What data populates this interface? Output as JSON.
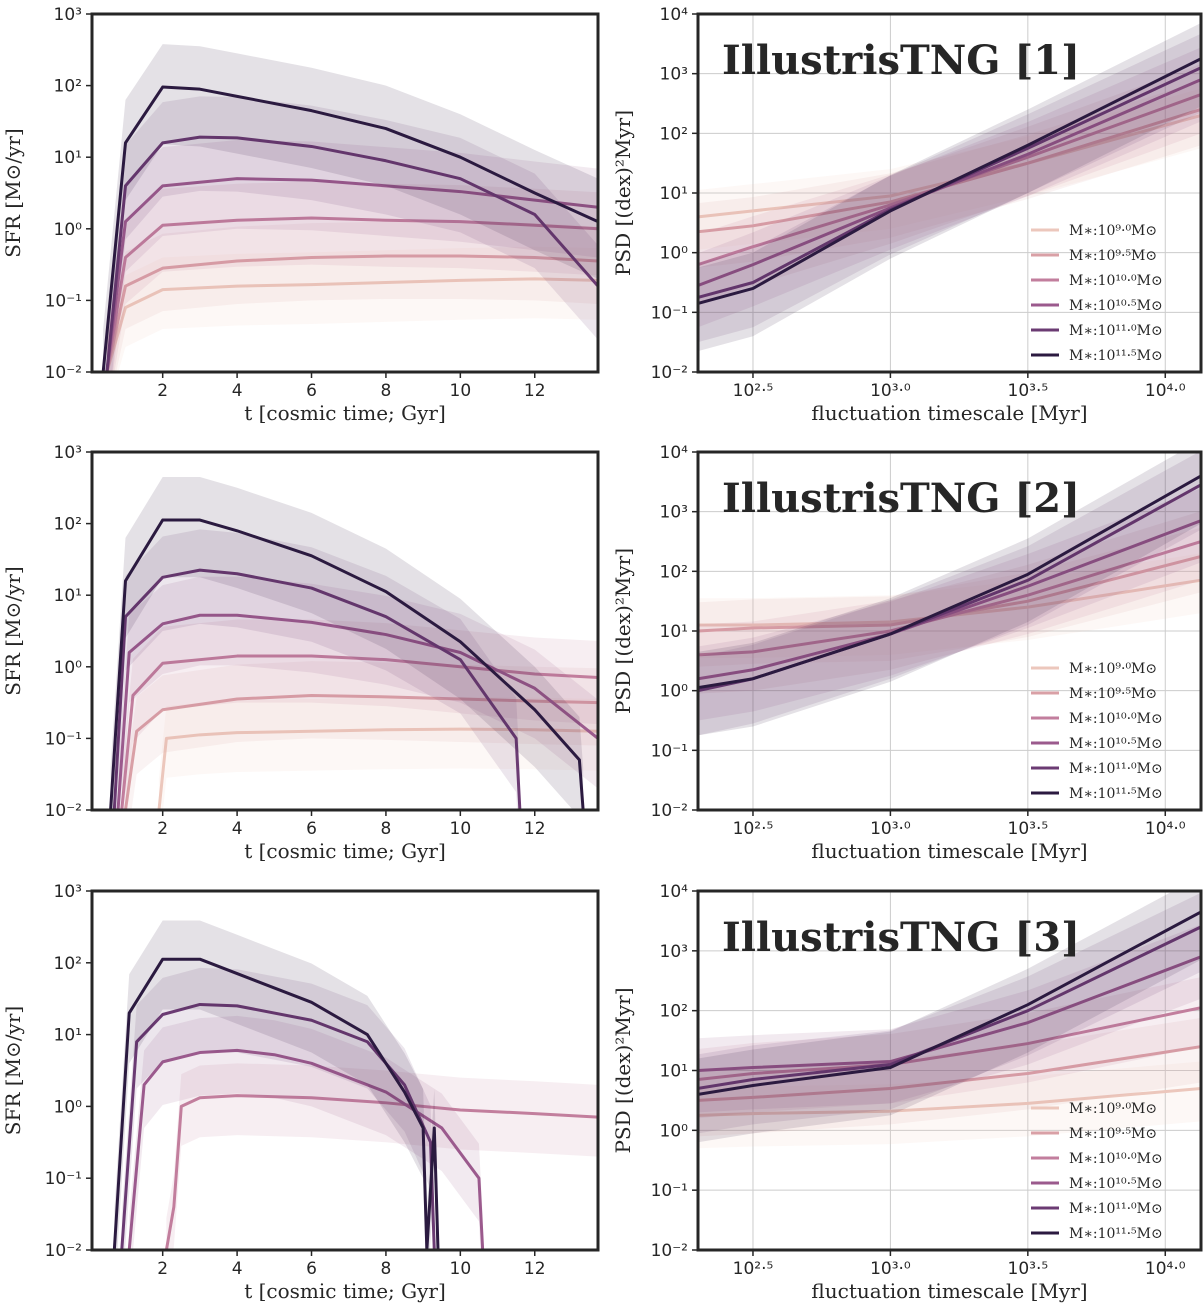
{
  "palette": [
    "#ecc7bc",
    "#d9a0a6",
    "#c27e9d",
    "#9b5a8d",
    "#6b3b73",
    "#2b1a40"
  ],
  "chart_data": [
    {
      "type": "line",
      "panel": "sfr",
      "xlabel": "t [cosmic time; Gyr]",
      "ylabel": "SFR [M⊙/yr]",
      "xlim": [
        0.1,
        13.7
      ],
      "ylim_log10": [
        -2,
        3
      ],
      "yscale": "log",
      "xticks": [
        2,
        4,
        6,
        8,
        10,
        12
      ],
      "yticks": [
        {
          "exp": -2,
          "label": "10⁻²"
        },
        {
          "exp": -1,
          "label": "10⁻¹"
        },
        {
          "exp": 0,
          "label": "10⁰"
        },
        {
          "exp": 1,
          "label": "10¹"
        },
        {
          "exp": 2,
          "label": "10²"
        },
        {
          "exp": 3,
          "label": "10³"
        }
      ],
      "series": [
        {
          "x": [
            0.5,
            1,
            2,
            4,
            6,
            8,
            10,
            12,
            13.7
          ],
          "log10_y": [
            -2,
            -1.1,
            -0.85,
            -0.8,
            -0.78,
            -0.75,
            -0.72,
            -0.7,
            -0.72
          ]
        },
        {
          "x": [
            0.5,
            1,
            2,
            4,
            6,
            8,
            10,
            12,
            13.7
          ],
          "log10_y": [
            -2,
            -0.8,
            -0.55,
            -0.45,
            -0.4,
            -0.38,
            -0.38,
            -0.4,
            -0.45
          ]
        },
        {
          "x": [
            0.5,
            1,
            2,
            4,
            6,
            8,
            10,
            12,
            13.7
          ],
          "log10_y": [
            -2,
            -0.4,
            0.05,
            0.12,
            0.15,
            0.12,
            0.1,
            0.05,
            0.0
          ]
        },
        {
          "x": [
            0.5,
            1,
            2,
            4,
            6,
            8,
            10,
            12,
            13.7
          ],
          "log10_y": [
            -2,
            0.1,
            0.6,
            0.7,
            0.68,
            0.6,
            0.52,
            0.4,
            0.3
          ]
        },
        {
          "x": [
            0.5,
            1,
            2,
            3,
            4,
            6,
            8,
            10,
            12,
            13.7
          ],
          "log10_y": [
            -2,
            0.6,
            1.2,
            1.28,
            1.27,
            1.15,
            0.95,
            0.7,
            0.2,
            -0.8
          ]
        },
        {
          "x": [
            0.4,
            1,
            2,
            3,
            4,
            6,
            8,
            10,
            12,
            13.7
          ],
          "log10_y": [
            -2,
            1.2,
            1.98,
            1.95,
            1.85,
            1.65,
            1.4,
            1.0,
            0.5,
            0.1
          ]
        }
      ]
    },
    {
      "type": "line",
      "panel": "psd",
      "title": "IllustrisTNG [1]",
      "xlabel": "fluctuation timescale [Myr]",
      "ylabel": "PSD [(dex)²Myr]",
      "xlim_log10": [
        2.3,
        4.13
      ],
      "ylim_log10": [
        -2,
        4
      ],
      "xscale": "log",
      "yscale": "log",
      "xticks": [
        {
          "exp": 2.5,
          "label": "10²·⁵"
        },
        {
          "exp": 3.0,
          "label": "10³·⁰"
        },
        {
          "exp": 3.5,
          "label": "10³·⁵"
        },
        {
          "exp": 4.0,
          "label": "10⁴·⁰"
        }
      ],
      "yticks": [
        {
          "exp": -2,
          "label": "10⁻²"
        },
        {
          "exp": -1,
          "label": "10⁻¹"
        },
        {
          "exp": 0,
          "label": "10⁰"
        },
        {
          "exp": 1,
          "label": "10¹"
        },
        {
          "exp": 2,
          "label": "10²"
        },
        {
          "exp": 3,
          "label": "10³"
        },
        {
          "exp": 4,
          "label": "10⁴"
        }
      ],
      "legend": [
        "M∗:10⁹·⁰M⊙",
        "M∗:10⁹·⁵M⊙",
        "M∗:10¹⁰·⁰M⊙",
        "M∗:10¹⁰·⁵M⊙",
        "M∗:10¹¹·⁰M⊙",
        "M∗:10¹¹·⁵M⊙"
      ],
      "legend_position": "lower-right",
      "series": [
        {
          "log10_x": [
            2.3,
            2.5,
            3.0,
            3.5,
            4.13
          ],
          "log10_y": [
            0.6,
            0.7,
            0.95,
            1.5,
            2.3
          ]
        },
        {
          "log10_x": [
            2.3,
            2.5,
            3.0,
            3.5,
            4.13
          ],
          "log10_y": [
            0.35,
            0.45,
            0.85,
            1.5,
            2.4
          ]
        },
        {
          "log10_x": [
            2.3,
            2.5,
            3.0,
            3.5,
            4.13
          ],
          "log10_y": [
            -0.2,
            0.1,
            0.8,
            1.6,
            2.65
          ]
        },
        {
          "log10_x": [
            2.3,
            2.5,
            3.0,
            3.5,
            4.13
          ],
          "log10_y": [
            -0.55,
            -0.2,
            0.75,
            1.65,
            2.9
          ]
        },
        {
          "log10_x": [
            2.3,
            2.5,
            3.0,
            3.5,
            4.13
          ],
          "log10_y": [
            -0.75,
            -0.5,
            0.72,
            1.75,
            3.1
          ]
        },
        {
          "log10_x": [
            2.3,
            2.5,
            3.0,
            3.5,
            4.13
          ],
          "log10_y": [
            -0.85,
            -0.6,
            0.7,
            1.8,
            3.25
          ]
        }
      ]
    },
    {
      "type": "line",
      "panel": "sfr",
      "xlabel": "t [cosmic time; Gyr]",
      "ylabel": "SFR [M⊙/yr]",
      "xlim": [
        0.1,
        13.7
      ],
      "ylim_log10": [
        -2,
        3
      ],
      "yscale": "log",
      "xticks": [
        2,
        4,
        6,
        8,
        10,
        12
      ],
      "yticks": [
        {
          "exp": -2,
          "label": "10⁻²"
        },
        {
          "exp": -1,
          "label": "10⁻¹"
        },
        {
          "exp": 0,
          "label": "10⁰"
        },
        {
          "exp": 1,
          "label": "10¹"
        },
        {
          "exp": 2,
          "label": "10²"
        },
        {
          "exp": 3,
          "label": "10³"
        }
      ],
      "series": [
        {
          "x": [
            1.9,
            2.1,
            3,
            4,
            6,
            8,
            10,
            12,
            13.7
          ],
          "log10_y": [
            -2,
            -1.0,
            -0.95,
            -0.92,
            -0.9,
            -0.88,
            -0.87,
            -0.88,
            -0.9
          ]
        },
        {
          "x": [
            1.0,
            1.3,
            2,
            4,
            6,
            8,
            10,
            12,
            13.7
          ],
          "log10_y": [
            -2,
            -0.9,
            -0.6,
            -0.45,
            -0.4,
            -0.42,
            -0.45,
            -0.48,
            -0.5
          ]
        },
        {
          "x": [
            0.9,
            1.2,
            2,
            4,
            6,
            8,
            10,
            12,
            13.7
          ],
          "log10_y": [
            -2,
            -0.4,
            0.05,
            0.15,
            0.15,
            0.1,
            0.0,
            -0.1,
            -0.15
          ]
        },
        {
          "x": [
            0.8,
            1.1,
            2,
            3,
            4,
            6,
            8,
            10,
            12,
            13.7
          ],
          "log10_y": [
            -2,
            0.2,
            0.6,
            0.72,
            0.72,
            0.62,
            0.45,
            0.2,
            -0.3,
            -1.0
          ]
        },
        {
          "x": [
            0.7,
            1.0,
            2,
            3,
            4,
            6,
            8,
            10,
            11.5,
            11.6
          ],
          "log10_y": [
            -2,
            0.7,
            1.25,
            1.35,
            1.3,
            1.1,
            0.7,
            0.1,
            -1.0,
            -2
          ]
        },
        {
          "x": [
            0.6,
            1.0,
            2,
            3,
            4,
            6,
            8,
            10,
            12,
            13.2,
            13.3
          ],
          "log10_y": [
            -2,
            1.2,
            2.05,
            2.05,
            1.9,
            1.55,
            1.05,
            0.35,
            -0.6,
            -1.3,
            -2
          ]
        }
      ]
    },
    {
      "type": "line",
      "panel": "psd",
      "title": "IllustrisTNG [2]",
      "xlabel": "fluctuation timescale [Myr]",
      "ylabel": "PSD [(dex)²Myr]",
      "xlim_log10": [
        2.3,
        4.13
      ],
      "ylim_log10": [
        -2,
        4
      ],
      "xscale": "log",
      "yscale": "log",
      "xticks": [
        {
          "exp": 2.5,
          "label": "10²·⁵"
        },
        {
          "exp": 3.0,
          "label": "10³·⁰"
        },
        {
          "exp": 3.5,
          "label": "10³·⁵"
        },
        {
          "exp": 4.0,
          "label": "10⁴·⁰"
        }
      ],
      "yticks": [
        {
          "exp": -2,
          "label": "10⁻²"
        },
        {
          "exp": -1,
          "label": "10⁻¹"
        },
        {
          "exp": 0,
          "label": "10⁰"
        },
        {
          "exp": 1,
          "label": "10¹"
        },
        {
          "exp": 2,
          "label": "10²"
        },
        {
          "exp": 3,
          "label": "10³"
        },
        {
          "exp": 4,
          "label": "10⁴"
        }
      ],
      "legend": [
        "M∗:10⁹·⁰M⊙",
        "M∗:10⁹·⁵M⊙",
        "M∗:10¹⁰·⁰M⊙",
        "M∗:10¹⁰·⁵M⊙",
        "M∗:10¹¹·⁰M⊙",
        "M∗:10¹¹·⁵M⊙"
      ],
      "legend_position": "lower-right",
      "series": [
        {
          "log10_x": [
            2.3,
            2.5,
            3.0,
            3.5,
            4.13
          ],
          "log10_y": [
            1.1,
            1.1,
            1.15,
            1.4,
            1.85
          ]
        },
        {
          "log10_x": [
            2.3,
            2.5,
            3.0,
            3.5,
            4.13
          ],
          "log10_y": [
            1.0,
            1.05,
            1.1,
            1.5,
            2.25
          ]
        },
        {
          "log10_x": [
            2.3,
            2.5,
            3.0,
            3.5,
            4.13
          ],
          "log10_y": [
            0.6,
            0.65,
            1.0,
            1.6,
            2.5
          ]
        },
        {
          "log10_x": [
            2.3,
            2.5,
            3.0,
            3.5,
            4.13
          ],
          "log10_y": [
            0.2,
            0.35,
            0.95,
            1.75,
            2.85
          ]
        },
        {
          "log10_x": [
            2.3,
            2.5,
            3.0,
            3.5,
            4.13
          ],
          "log10_y": [
            0.0,
            0.2,
            0.95,
            1.85,
            3.45
          ]
        },
        {
          "log10_x": [
            2.3,
            2.5,
            3.0,
            3.5,
            4.13
          ],
          "log10_y": [
            0.05,
            0.2,
            0.95,
            1.95,
            3.6
          ]
        }
      ]
    },
    {
      "type": "line",
      "panel": "sfr",
      "xlabel": "t [cosmic time; Gyr]",
      "ylabel": "SFR [M⊙/yr]",
      "xlim": [
        0.1,
        13.7
      ],
      "ylim_log10": [
        -2,
        3
      ],
      "yscale": "log",
      "xticks": [
        2,
        4,
        6,
        8,
        10,
        12
      ],
      "yticks": [
        {
          "exp": -2,
          "label": "10⁻²"
        },
        {
          "exp": -1,
          "label": "10⁻¹"
        },
        {
          "exp": 0,
          "label": "10⁰"
        },
        {
          "exp": 1,
          "label": "10¹"
        },
        {
          "exp": 2,
          "label": "10²"
        },
        {
          "exp": 3,
          "label": "10³"
        }
      ],
      "series": [
        {
          "x": [
            2.1,
            2.3,
            2.5,
            3,
            4,
            6,
            8,
            10,
            12,
            13.7
          ],
          "log10_y": [
            -2,
            -1.4,
            0.0,
            0.12,
            0.15,
            0.12,
            0.05,
            -0.05,
            -0.1,
            -0.15
          ]
        },
        {
          "x": [
            1.1,
            1.5,
            2,
            3,
            4,
            5,
            6,
            8,
            9.5,
            10.5,
            10.6
          ],
          "log10_y": [
            -2,
            0.3,
            0.62,
            0.75,
            0.78,
            0.72,
            0.6,
            0.2,
            -0.3,
            -1.0,
            -2
          ]
        },
        {
          "x": [
            0.9,
            1.3,
            2,
            3,
            4,
            6,
            7.5,
            8.5,
            9.2,
            9.3
          ],
          "log10_y": [
            -2,
            0.9,
            1.28,
            1.42,
            1.4,
            1.2,
            0.9,
            0.3,
            -0.5,
            -2
          ]
        },
        {
          "x": [
            0.7,
            1.1,
            2,
            3,
            4,
            6,
            7.5,
            8.5,
            9.0,
            9.1,
            9.3,
            9.4
          ],
          "log10_y": [
            -2,
            1.3,
            2.05,
            2.05,
            1.85,
            1.45,
            1.0,
            0.2,
            -0.3,
            -2,
            -0.3,
            -2
          ]
        }
      ]
    },
    {
      "type": "line",
      "panel": "psd",
      "title": "IllustrisTNG [3]",
      "xlabel": "fluctuation timescale [Myr]",
      "ylabel": "PSD [(dex)²Myr]",
      "xlim_log10": [
        2.3,
        4.13
      ],
      "ylim_log10": [
        -2,
        4
      ],
      "xscale": "log",
      "yscale": "log",
      "xticks": [
        {
          "exp": 2.5,
          "label": "10²·⁵"
        },
        {
          "exp": 3.0,
          "label": "10³·⁰"
        },
        {
          "exp": 3.5,
          "label": "10³·⁵"
        },
        {
          "exp": 4.0,
          "label": "10⁴·⁰"
        }
      ],
      "yticks": [
        {
          "exp": -2,
          "label": "10⁻²"
        },
        {
          "exp": -1,
          "label": "10⁻¹"
        },
        {
          "exp": 0,
          "label": "10⁰"
        },
        {
          "exp": 1,
          "label": "10¹"
        },
        {
          "exp": 2,
          "label": "10²"
        },
        {
          "exp": 3,
          "label": "10³"
        },
        {
          "exp": 4,
          "label": "10⁴"
        }
      ],
      "legend": [
        "M∗:10⁹·⁰M⊙",
        "M∗:10⁹·⁵M⊙",
        "M∗:10¹⁰·⁰M⊙",
        "M∗:10¹⁰·⁵M⊙",
        "M∗:10¹¹·⁰M⊙",
        "M∗:10¹¹·⁵M⊙"
      ],
      "legend_position": "lower-right",
      "series": [
        {
          "log10_x": [
            2.3,
            2.5,
            3.0,
            3.5,
            4.13
          ],
          "log10_y": [
            0.25,
            0.28,
            0.32,
            0.45,
            0.7
          ]
        },
        {
          "log10_x": [
            2.3,
            2.5,
            3.0,
            3.5,
            4.13
          ],
          "log10_y": [
            0.5,
            0.55,
            0.7,
            0.95,
            1.4
          ]
        },
        {
          "log10_x": [
            2.3,
            2.5,
            3.0,
            3.5,
            4.13
          ],
          "log10_y": [
            0.85,
            0.95,
            1.1,
            1.45,
            2.05
          ]
        },
        {
          "log10_x": [
            2.3,
            2.5,
            3.0,
            3.5,
            4.13
          ],
          "log10_y": [
            1.0,
            1.05,
            1.15,
            1.8,
            2.9
          ]
        },
        {
          "log10_x": [
            2.3,
            2.5,
            3.0,
            3.5,
            4.13
          ],
          "log10_y": [
            0.7,
            0.85,
            1.1,
            2.0,
            3.4
          ]
        },
        {
          "log10_x": [
            2.3,
            2.5,
            3.0,
            3.5,
            4.13
          ],
          "log10_y": [
            0.6,
            0.75,
            1.05,
            2.1,
            3.65
          ]
        }
      ]
    }
  ]
}
